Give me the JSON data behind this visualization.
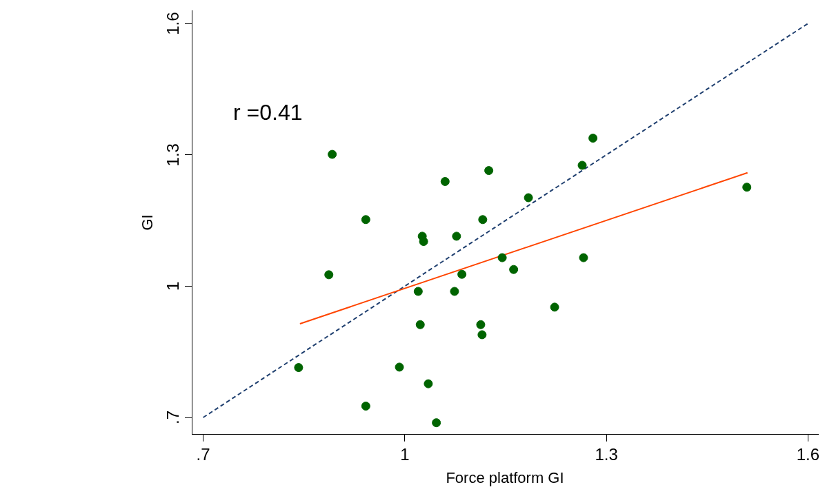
{
  "chart_data": {
    "type": "scatter",
    "xlabel": "Force platform GI",
    "ylabel": "GI",
    "annotations": [
      "r =0.41"
    ],
    "xlim": [
      0.683,
      1.615
    ],
    "ylim": [
      0.661,
      1.63
    ],
    "xticks": [
      {
        "value": 0.7,
        "label": ".7"
      },
      1,
      1.3,
      1.6
    ],
    "yticks": [
      {
        "value": 0.7,
        "label": ".7"
      },
      1,
      1.3,
      1.6
    ],
    "grid": false,
    "legend": false,
    "marker": "circle",
    "series": [
      {
        "type": "scatter",
        "color": "#006400",
        "x": [
          0.892,
          0.942,
          0.887,
          0.842,
          0.942,
          0.992,
          1.035,
          1.047,
          1.02,
          1.023,
          1.026,
          1.028,
          1.06,
          1.077,
          1.074,
          1.085,
          1.113,
          1.115,
          1.116,
          1.125,
          1.145,
          1.162,
          1.184,
          1.223,
          1.264,
          1.266,
          1.28,
          1.509
        ],
        "values": [
          1.301,
          1.152,
          1.026,
          0.814,
          0.726,
          0.815,
          0.777,
          0.688,
          0.988,
          0.912,
          1.114,
          1.102,
          1.239,
          1.114,
          0.988,
          1.027,
          0.912,
          0.889,
          1.152,
          1.264,
          1.065,
          1.038,
          1.202,
          0.952,
          1.276,
          1.065,
          1.338,
          1.226
        ]
      },
      {
        "type": "line",
        "color": "#ff4500",
        "line_style": "solid",
        "marker": "none",
        "x": [
          0.844,
          1.51
        ],
        "values": [
          0.914,
          1.259
        ]
      },
      {
        "type": "line",
        "color": "#1f3f6f",
        "line_style": "dashed",
        "marker": "none",
        "x": [
          0.7,
          1.6
        ],
        "values": [
          0.7,
          1.6
        ]
      }
    ]
  }
}
